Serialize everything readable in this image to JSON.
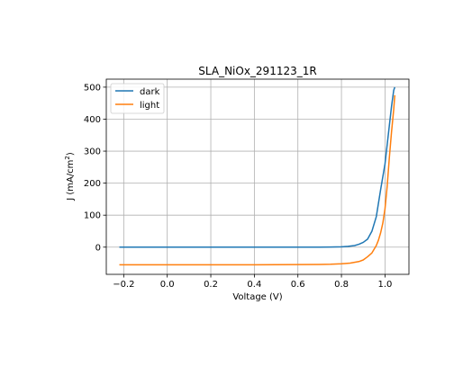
{
  "chart_data": {
    "type": "line",
    "title": "SLA_NiOx_291123_1R",
    "xlabel": "Voltage (V)",
    "ylabel_main": "J (mA/cm",
    "ylabel_sup": "2",
    "ylabel_end": ")",
    "xlim": [
      -0.28,
      1.11
    ],
    "ylim": [
      -85,
      525
    ],
    "xticks": [
      -0.2,
      0.0,
      0.2,
      0.4,
      0.6,
      0.8,
      1.0
    ],
    "xtick_labels": [
      "−0.2",
      "0.0",
      "0.2",
      "0.4",
      "0.6",
      "0.8",
      "1.0"
    ],
    "yticks": [
      0,
      100,
      200,
      300,
      400,
      500
    ],
    "ytick_labels": [
      "0",
      "100",
      "200",
      "300",
      "400",
      "500"
    ],
    "grid": true,
    "legend_position": "top-left",
    "series": [
      {
        "name": "dark",
        "color": "#1f77b4",
        "x": [
          -0.22,
          -0.1,
          0.0,
          0.2,
          0.4,
          0.6,
          0.7,
          0.75,
          0.8,
          0.83,
          0.86,
          0.88,
          0.9,
          0.92,
          0.94,
          0.96,
          0.98,
          1.0,
          1.01,
          1.02,
          1.03,
          1.04,
          1.045
        ],
        "y": [
          0,
          0,
          0,
          0,
          0,
          0,
          0.1,
          0.3,
          1,
          2.5,
          5,
          9,
          15,
          25,
          50,
          95,
          180,
          260,
          320,
          380,
          440,
          490,
          500
        ]
      },
      {
        "name": "light",
        "color": "#ff7f0e",
        "x": [
          -0.22,
          -0.1,
          0.0,
          0.2,
          0.4,
          0.6,
          0.7,
          0.75,
          0.8,
          0.84,
          0.88,
          0.9,
          0.92,
          0.94,
          0.96,
          0.97,
          0.98,
          0.99,
          1.0,
          1.01,
          1.02,
          1.03,
          1.04,
          1.045
        ],
        "y": [
          -55,
          -55,
          -55,
          -55,
          -55,
          -54.5,
          -54,
          -53.5,
          -52,
          -50,
          -45,
          -40,
          -30,
          -18,
          5,
          22,
          45,
          75,
          120,
          190,
          280,
          360,
          430,
          475
        ]
      }
    ]
  }
}
